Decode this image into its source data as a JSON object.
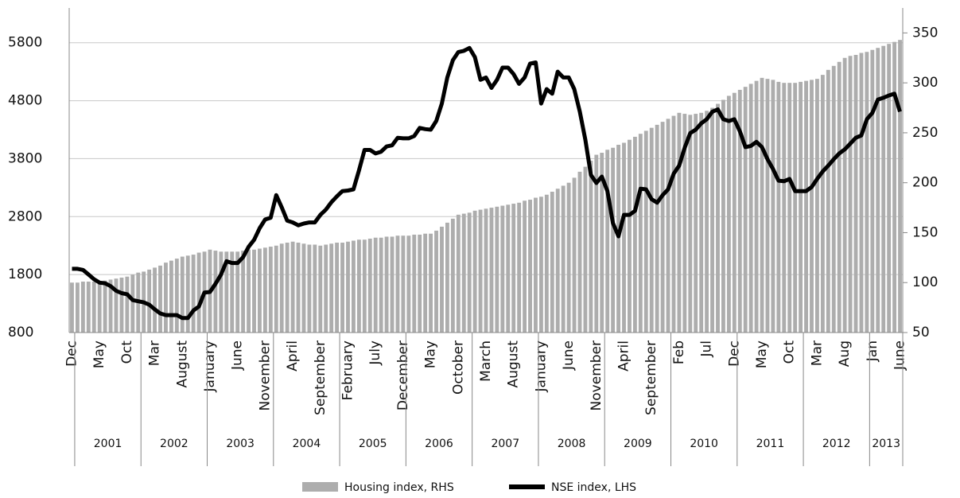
{
  "chart_data": {
    "type": "combo",
    "ylim": [
      800,
      6400
    ],
    "yticks": [
      800,
      1800,
      2800,
      3800,
      4800,
      5800
    ],
    "y2lim": [
      50,
      375
    ],
    "y2ticks": [
      50,
      100,
      150,
      200,
      250,
      300,
      350
    ],
    "grid": true,
    "legend": "bottom",
    "categories": [
      "Dec",
      null,
      null,
      null,
      null,
      "May",
      null,
      null,
      null,
      null,
      "Oct",
      null,
      null,
      null,
      null,
      "Mar",
      null,
      null,
      null,
      null,
      "August",
      null,
      null,
      null,
      null,
      "January",
      null,
      null,
      null,
      null,
      "June",
      null,
      null,
      null,
      null,
      "November",
      null,
      null,
      null,
      null,
      "April",
      null,
      null,
      null,
      null,
      "September",
      null,
      null,
      null,
      null,
      "February",
      null,
      null,
      null,
      null,
      "July",
      null,
      null,
      null,
      null,
      "December",
      null,
      null,
      null,
      null,
      "May",
      null,
      null,
      null,
      null,
      "October",
      null,
      null,
      null,
      null,
      "March",
      null,
      null,
      null,
      null,
      "August",
      null,
      null,
      null,
      null,
      "January",
      null,
      null,
      null,
      null,
      "June",
      null,
      null,
      null,
      null,
      "November",
      null,
      null,
      null,
      null,
      "April",
      null,
      null,
      null,
      null,
      "September",
      null,
      null,
      null,
      null,
      "Feb",
      null,
      null,
      null,
      null,
      "Jul",
      null,
      null,
      null,
      null,
      "Dec",
      null,
      null,
      null,
      null,
      "May",
      null,
      null,
      null,
      null,
      "Oct",
      null,
      null,
      null,
      null,
      "Mar",
      null,
      null,
      null,
      null,
      "Aug",
      null,
      null,
      null,
      null,
      "Jan",
      null,
      null,
      null,
      null,
      "June"
    ],
    "year_labels": [
      "2001",
      "2002",
      "2003",
      "2004",
      "2005",
      "2006",
      "2007",
      "2008",
      "2009",
      "2010",
      "2011",
      "2012",
      "2013"
    ],
    "series": [
      {
        "name": "Housing index, RHS",
        "type": "bar",
        "axis": "y2",
        "color": "#adadad",
        "values": [
          100,
          100,
          101,
          101,
          101,
          101,
          102,
          103,
          104,
          105,
          106,
          108,
          110,
          111,
          113,
          115,
          117,
          120,
          122,
          124,
          126,
          127,
          128,
          130,
          131,
          133,
          132,
          131,
          131,
          131,
          131,
          132,
          133,
          133,
          134,
          135,
          136,
          137,
          139,
          140,
          141,
          140,
          139,
          138,
          138,
          137,
          138,
          139,
          140,
          140,
          141,
          142,
          143,
          143,
          144,
          145,
          145,
          146,
          146,
          147,
          147,
          147,
          148,
          148,
          149,
          149,
          152,
          156,
          160,
          164,
          168,
          169,
          170,
          172,
          173,
          174,
          175,
          176,
          177,
          178,
          179,
          180,
          182,
          183,
          185,
          186,
          188,
          191,
          194,
          197,
          200,
          205,
          211,
          216,
          222,
          228,
          230,
          233,
          235,
          238,
          240,
          243,
          246,
          249,
          252,
          255,
          258,
          261,
          264,
          267,
          270,
          269,
          268,
          269,
          270,
          272,
          275,
          279,
          283,
          287,
          290,
          293,
          296,
          299,
          302,
          305,
          304,
          303,
          301,
          300,
          300,
          300,
          301,
          302,
          303,
          304,
          308,
          313,
          317,
          321,
          325,
          327,
          328,
          330,
          331,
          333,
          335,
          337,
          339,
          341,
          343
        ]
      },
      {
        "name": "NSE index, LHS",
        "type": "line",
        "color": "#000000",
        "values": [
          1900,
          1900,
          1880,
          1800,
          1720,
          1660,
          1650,
          1600,
          1520,
          1480,
          1460,
          1360,
          1340,
          1320,
          1280,
          1200,
          1130,
          1100,
          1100,
          1100,
          1050,
          1050,
          1180,
          1250,
          1490,
          1500,
          1640,
          1800,
          2030,
          2000,
          2000,
          2100,
          2280,
          2400,
          2600,
          2750,
          2780,
          3170,
          2960,
          2730,
          2700,
          2650,
          2680,
          2700,
          2700,
          2830,
          2920,
          3050,
          3150,
          3240,
          3250,
          3270,
          3600,
          3950,
          3950,
          3890,
          3920,
          4010,
          4030,
          4160,
          4150,
          4150,
          4190,
          4330,
          4310,
          4300,
          4450,
          4750,
          5200,
          5500,
          5640,
          5660,
          5710,
          5550,
          5160,
          5200,
          5020,
          5160,
          5370,
          5370,
          5260,
          5090,
          5200,
          5440,
          5460,
          4750,
          5000,
          4920,
          5300,
          5200,
          5200,
          5000,
          4610,
          4130,
          3520,
          3380,
          3490,
          3240,
          2690,
          2460,
          2830,
          2830,
          2900,
          3280,
          3270,
          3100,
          3040,
          3170,
          3270,
          3540,
          3680,
          3990,
          4240,
          4300,
          4410,
          4480,
          4610,
          4650,
          4480,
          4450,
          4480,
          4270,
          4000,
          4020,
          4090,
          4000,
          3790,
          3620,
          3420,
          3410,
          3450,
          3240,
          3240,
          3240,
          3310,
          3450,
          3580,
          3680,
          3790,
          3890,
          3960,
          4060,
          4160,
          4200,
          4480,
          4590,
          4820,
          4850,
          4890,
          4920,
          4610
        ]
      }
    ]
  }
}
